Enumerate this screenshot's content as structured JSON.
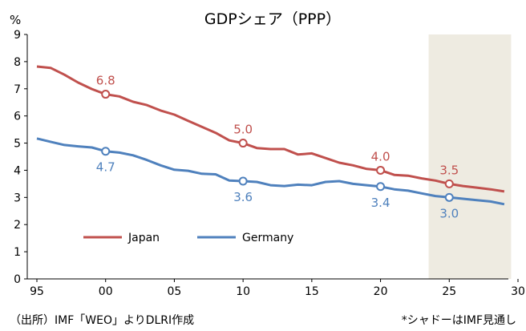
{
  "chart_data": {
    "type": "line",
    "title": "GDPシェア（PPP）",
    "ylabel": "%",
    "xlabel": "",
    "ylim": [
      0,
      9
    ],
    "yticks": [
      "0",
      "1",
      "2",
      "3",
      "4",
      "5",
      "6",
      "7",
      "8",
      "9"
    ],
    "xlim": [
      1995,
      2030
    ],
    "xticks": [
      {
        "value": 1995,
        "label": "95"
      },
      {
        "value": 2000,
        "label": "00"
      },
      {
        "value": 2005,
        "label": "05"
      },
      {
        "value": 2010,
        "label": "10"
      },
      {
        "value": 2015,
        "label": "15"
      },
      {
        "value": 2020,
        "label": "20"
      },
      {
        "value": 2025,
        "label": "25"
      },
      {
        "value": 2030,
        "label": "30"
      }
    ],
    "forecast_range": [
      2023.5,
      2029.5
    ],
    "series": [
      {
        "name": "Japan",
        "color": "#c0504d",
        "x": [
          1995,
          1996,
          1997,
          1998,
          1999,
          2000,
          2001,
          2002,
          2003,
          2004,
          2005,
          2006,
          2007,
          2008,
          2009,
          2010,
          2011,
          2012,
          2013,
          2014,
          2015,
          2016,
          2017,
          2018,
          2019,
          2020,
          2021,
          2022,
          2023,
          2024,
          2025,
          2026,
          2027,
          2028,
          2029
        ],
        "values": [
          7.82,
          7.77,
          7.52,
          7.23,
          6.99,
          6.8,
          6.72,
          6.52,
          6.4,
          6.2,
          6.05,
          5.82,
          5.6,
          5.38,
          5.1,
          5.0,
          4.82,
          4.78,
          4.78,
          4.58,
          4.62,
          4.45,
          4.28,
          4.18,
          4.05,
          4.0,
          3.83,
          3.8,
          3.7,
          3.62,
          3.5,
          3.42,
          3.36,
          3.3,
          3.22
        ],
        "labels": [
          {
            "x": 2000,
            "text": "6.8"
          },
          {
            "x": 2010,
            "text": "5.0"
          },
          {
            "x": 2020,
            "text": "4.0"
          },
          {
            "x": 2025,
            "text": "3.5"
          }
        ]
      },
      {
        "name": "Germany",
        "color": "#4f81bd",
        "x": [
          1995,
          1996,
          1997,
          1998,
          1999,
          2000,
          2001,
          2002,
          2003,
          2004,
          2005,
          2006,
          2007,
          2008,
          2009,
          2010,
          2011,
          2012,
          2013,
          2014,
          2015,
          2016,
          2017,
          2018,
          2019,
          2020,
          2021,
          2022,
          2023,
          2024,
          2025,
          2026,
          2027,
          2028,
          2029
        ],
        "values": [
          5.17,
          5.05,
          4.93,
          4.88,
          4.84,
          4.7,
          4.65,
          4.55,
          4.38,
          4.18,
          4.02,
          3.98,
          3.87,
          3.85,
          3.62,
          3.6,
          3.57,
          3.45,
          3.42,
          3.47,
          3.45,
          3.57,
          3.6,
          3.5,
          3.45,
          3.4,
          3.3,
          3.25,
          3.15,
          3.05,
          3.0,
          2.95,
          2.9,
          2.85,
          2.75
        ],
        "labels": [
          {
            "x": 2000,
            "text": "4.7"
          },
          {
            "x": 2010,
            "text": "3.6"
          },
          {
            "x": 2020,
            "text": "3.4"
          },
          {
            "x": 2025,
            "text": "3.0"
          }
        ]
      }
    ],
    "source_note": "（出所）IMF「WEO」よりDLRI作成",
    "shadow_note": "*シャドーはIMF見通し"
  }
}
